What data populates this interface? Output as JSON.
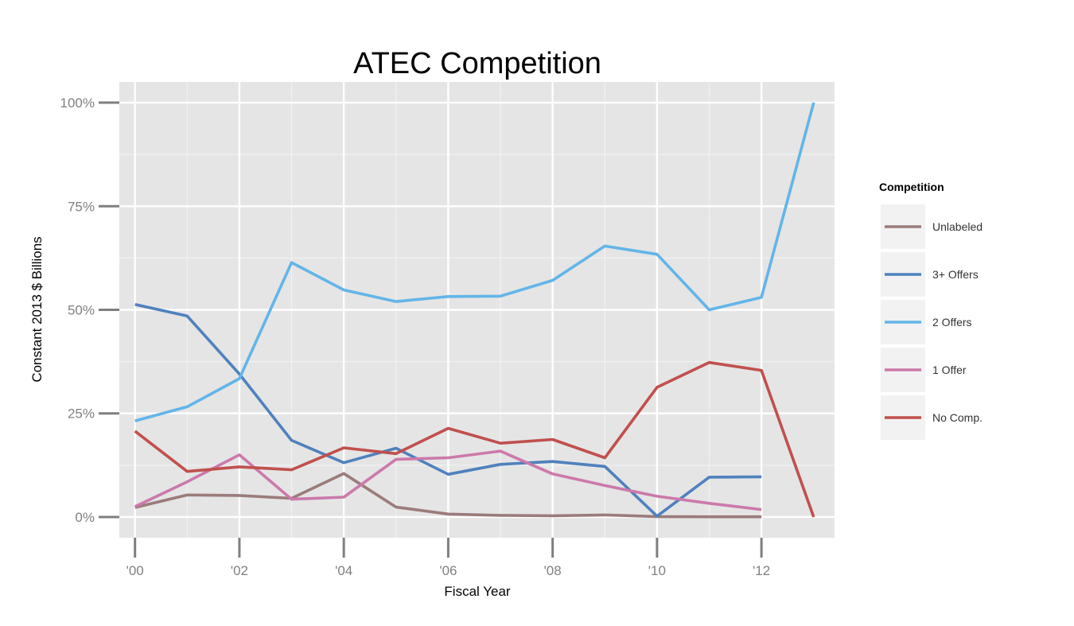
{
  "chart_data": {
    "type": "line",
    "title": "ATEC Competition",
    "xlabel": "Fiscal Year",
    "ylabel": "Constant 2013 $ Billions",
    "x": [
      2000,
      2001,
      2002,
      2003,
      2004,
      2005,
      2006,
      2007,
      2008,
      2009,
      2010,
      2011,
      2012,
      2013
    ],
    "x_ticks": [
      2000,
      2002,
      2004,
      2006,
      2008,
      2010,
      2012
    ],
    "x_tick_labels": [
      "'00",
      "'02",
      "'04",
      "'06",
      "'08",
      "'10",
      "'12"
    ],
    "xlim": [
      1999.7,
      2013.4
    ],
    "y_ticks": [
      0,
      25,
      50,
      75,
      100
    ],
    "y_tick_labels": [
      "0%",
      "25%",
      "50%",
      "75%",
      "100%"
    ],
    "ylim": [
      -5,
      105
    ],
    "grid": true,
    "legend": {
      "title": "Competition",
      "position": "right"
    },
    "series": [
      {
        "name": "Unlabeled",
        "color": "#9B7B7B",
        "values": [
          2.3,
          5.3,
          5.2,
          4.5,
          10.5,
          2.4,
          0.7,
          0.4,
          0.3,
          0.5,
          0.1,
          0.05,
          0.05,
          null
        ]
      },
      {
        "name": "3+ Offers",
        "color": "#4F81BD",
        "values": [
          51.3,
          48.5,
          34.5,
          18.5,
          13.1,
          16.6,
          10.3,
          12.7,
          13.4,
          12.2,
          0.2,
          9.6,
          9.7,
          null
        ]
      },
      {
        "name": "2 Offers",
        "color": "#63B5E8",
        "values": [
          23.2,
          26.6,
          33.4,
          61.4,
          54.8,
          52.0,
          53.2,
          53.3,
          57.1,
          65.4,
          63.4,
          50.0,
          53.0,
          100.0
        ]
      },
      {
        "name": "1 Offer",
        "color": "#CC79AB",
        "values": [
          2.5,
          8.5,
          15.0,
          4.3,
          4.8,
          13.9,
          14.3,
          15.9,
          10.4,
          7.6,
          5.0,
          3.3,
          1.8,
          null
        ]
      },
      {
        "name": "No Comp.",
        "color": "#C0504D",
        "values": [
          20.7,
          11.0,
          12.1,
          11.4,
          16.7,
          15.3,
          21.4,
          17.8,
          18.7,
          14.3,
          31.3,
          37.3,
          35.4,
          0.0
        ]
      }
    ]
  }
}
